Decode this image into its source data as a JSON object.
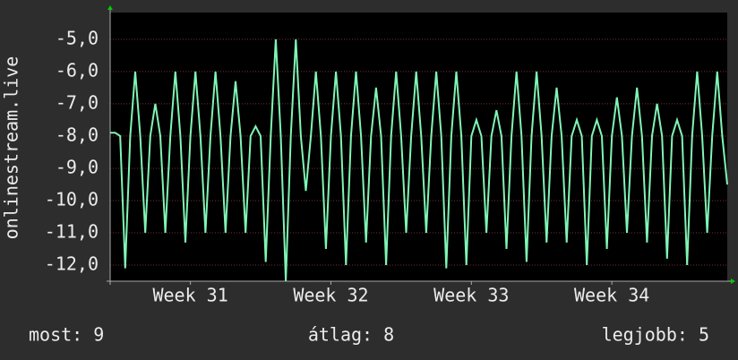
{
  "chart_data": {
    "type": "line",
    "y_label": "onlinestream.live",
    "x": [
      0,
      0.25,
      0.5,
      0.75,
      1,
      1.25,
      1.5,
      1.75,
      2,
      2.25,
      2.5,
      2.75,
      3,
      3.25,
      3.5,
      3.75,
      4,
      4.25,
      4.5,
      4.75,
      5,
      5.25,
      5.5,
      5.75,
      6,
      6.25,
      6.5,
      6.75,
      7,
      7.25,
      7.5,
      7.75,
      8,
      8.25,
      8.5,
      8.75,
      9,
      9.25,
      9.5,
      9.75,
      10,
      10.25,
      10.5,
      10.75,
      11,
      11.25,
      11.5,
      11.75,
      12,
      12.25,
      12.5,
      12.75,
      13,
      13.25,
      13.5,
      13.75,
      14,
      14.25,
      14.5,
      14.75,
      15,
      15.25,
      15.5,
      15.75,
      16,
      16.25,
      16.5,
      16.75,
      17,
      17.25,
      17.5,
      17.75,
      18,
      18.25,
      18.5,
      18.75,
      19,
      19.25,
      19.5,
      19.75,
      20,
      20.25,
      20.5,
      20.75,
      21,
      21.25,
      21.5,
      21.75,
      22,
      22.25,
      22.5,
      22.75,
      23,
      23.25,
      23.5,
      23.75,
      24,
      24.25,
      24.5,
      24.75,
      25,
      25.25,
      25.5,
      25.75,
      26,
      26.25,
      26.5,
      26.75,
      27,
      27.25,
      27.5,
      27.75,
      28,
      28.25,
      28.5,
      28.75,
      29,
      29.25,
      29.5,
      29.75,
      30,
      30.25,
      30.5,
      30.75
    ],
    "series": [
      {
        "color": "#80f5b4",
        "values": [
          -7.9,
          -7.9,
          -8,
          -12.1,
          -8,
          -6,
          -8,
          -11,
          -8,
          -7,
          -8,
          -11,
          -8,
          -6,
          -8,
          -11.3,
          -8,
          -6,
          -8,
          -11,
          -8,
          -6,
          -8,
          -11,
          -8,
          -6.3,
          -8,
          -11,
          -8,
          -7.7,
          -8,
          -11.9,
          -8,
          -5,
          -8,
          -12.5,
          -8,
          -5,
          -8,
          -9.7,
          -8,
          -6,
          -8,
          -11.5,
          -8,
          -6,
          -8,
          -12,
          -8,
          -6,
          -8,
          -11.3,
          -8,
          -6.5,
          -8,
          -12,
          -8,
          -6,
          -8,
          -11,
          -8,
          -6,
          -8,
          -11,
          -8,
          -6,
          -8,
          -12.1,
          -8,
          -6,
          -8,
          -12,
          -8,
          -7.5,
          -8,
          -11,
          -8,
          -7.2,
          -8,
          -11.5,
          -8,
          -6,
          -8,
          -11.9,
          -8,
          -6,
          -8,
          -11.3,
          -8,
          -6.5,
          -8,
          -11.3,
          -8,
          -7.5,
          -8,
          -12,
          -8,
          -7.5,
          -8,
          -11.5,
          -8,
          -6.8,
          -8,
          -11,
          -8,
          -6.5,
          -8,
          -11.3,
          -8,
          -7,
          -8,
          -11.8,
          -8,
          -7.5,
          -8,
          -12,
          -8,
          -6,
          -8,
          -11,
          -8,
          -6,
          -8,
          -9.5
        ]
      }
    ],
    "xlim": [
      0,
      30.75
    ],
    "xticks": [
      {
        "value": 4,
        "label": "Week 31"
      },
      {
        "value": 11,
        "label": "Week 32"
      },
      {
        "value": 18,
        "label": "Week 33"
      },
      {
        "value": 25,
        "label": "Week 34"
      }
    ],
    "ylim": [
      -12.5,
      -4.17
    ],
    "yticks": [
      {
        "value": -12,
        "label": "-12,0"
      },
      {
        "value": -11,
        "label": "-11,0"
      },
      {
        "value": -10,
        "label": "-10,0"
      },
      {
        "value": -9,
        "label": "-9,0"
      },
      {
        "value": -8,
        "label": "-8,0"
      },
      {
        "value": -7,
        "label": "-7,0"
      },
      {
        "value": -6,
        "label": "-6,0"
      },
      {
        "value": -5,
        "label": "-5,0"
      }
    ],
    "grid": true,
    "footer": [
      "most: 9",
      "átlag: 8",
      "legjobb: 5"
    ]
  }
}
